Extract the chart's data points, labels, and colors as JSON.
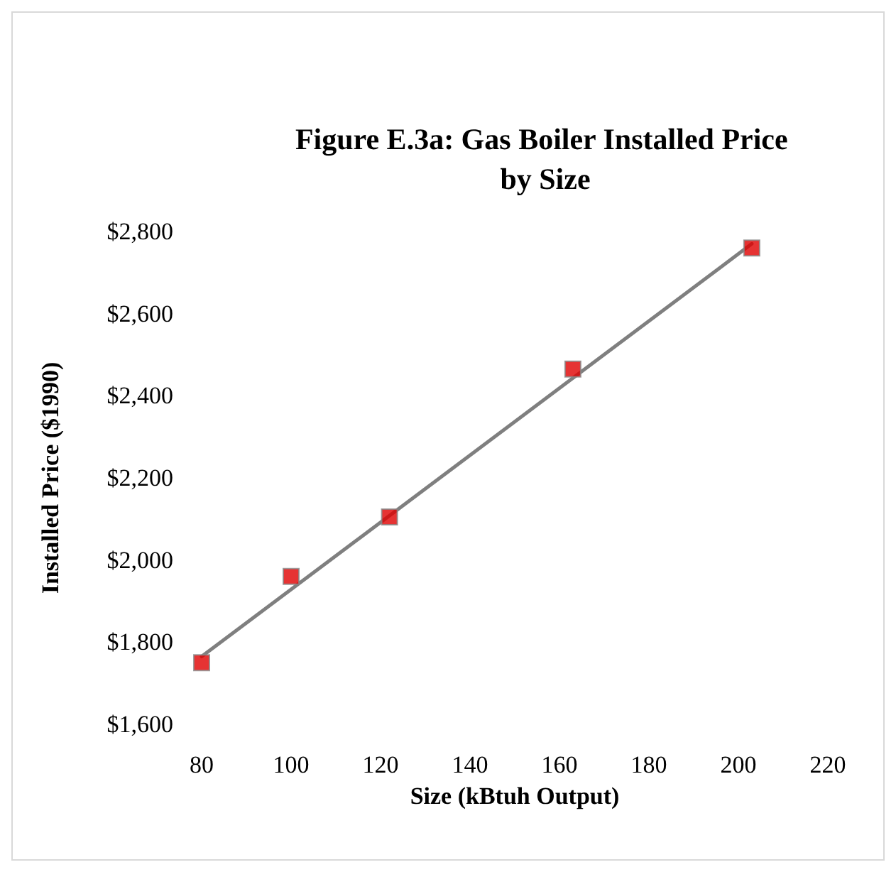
{
  "chart_data": {
    "type": "scatter",
    "title": "Figure E.3a: Gas Boiler Installed Price by Size",
    "xlabel": "Size (kBtuh Output)",
    "ylabel": "Installed Price ($1990)",
    "xlim": [
      80,
      220
    ],
    "xticks": [
      80,
      100,
      120,
      140,
      160,
      180,
      200,
      220
    ],
    "ylim": [
      1600,
      2800
    ],
    "yticks": [
      {
        "value": 1600,
        "label": "$1,600"
      },
      {
        "value": 1800,
        "label": "$1,800"
      },
      {
        "value": 2000,
        "label": "$2,000"
      },
      {
        "value": 2200,
        "label": "$2,200"
      },
      {
        "value": 2400,
        "label": "$2,400"
      },
      {
        "value": 2600,
        "label": "$2,600"
      },
      {
        "value": 2800,
        "label": "$2,800"
      }
    ],
    "grid": false,
    "marker": "square",
    "series": [
      {
        "type": "line",
        "color": "#7f7f7f",
        "x": [
          80,
          203
        ],
        "values": [
          1765,
          2770
        ],
        "marker": "none",
        "line_style": "solid"
      },
      {
        "type": "scatter",
        "color": "#e00000",
        "x": [
          80,
          100,
          122,
          163,
          203
        ],
        "values": [
          1750,
          1960,
          2105,
          2465,
          2760
        ]
      }
    ]
  }
}
